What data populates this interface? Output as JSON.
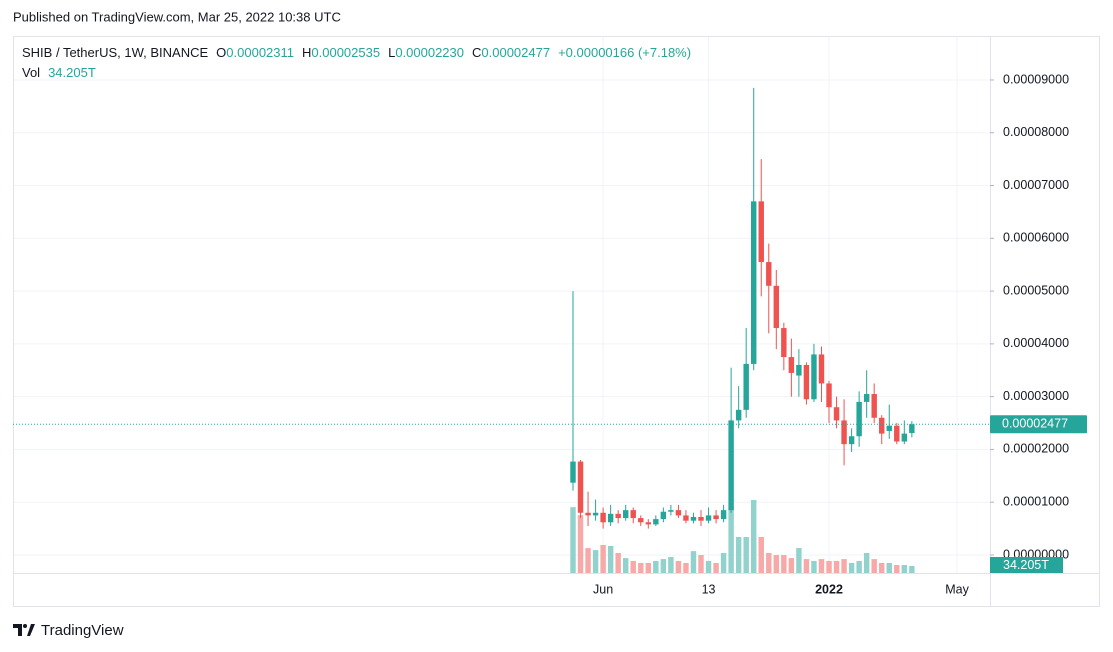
{
  "chart_data": {
    "type": "candlestick",
    "published": "Published on TradingView.com, Mar 25, 2022 10:38 UTC",
    "brand": "TradingView",
    "symbol": "SHIB / TetherUS, 1W, BINANCE",
    "ohlc": [
      {
        "key": "O",
        "text": "0.00002311"
      },
      {
        "key": "H",
        "text": "0.00002535"
      },
      {
        "key": "L",
        "text": "0.00002230"
      },
      {
        "key": "C",
        "text": "0.00002477"
      }
    ],
    "change": "+0.00000166 (+7.18%)",
    "volume_name": "Vol",
    "volume_label": "34.205T",
    "up_color": "#26a69a",
    "down_color": "#ef5350",
    "volume_up_color": "#92d2cc",
    "volume_down_color": "#f7a9a7",
    "grid": true,
    "x": [
      0,
      1,
      2,
      3,
      4,
      5,
      6,
      7,
      8,
      9,
      10,
      11,
      12,
      13,
      14,
      15,
      16,
      17,
      18,
      19,
      20,
      21,
      22,
      23,
      24,
      25,
      26,
      27,
      28,
      29,
      30,
      31,
      32,
      33,
      34,
      35,
      36,
      37,
      38,
      39,
      40,
      41,
      42,
      43,
      44,
      45
    ],
    "open": [
      1.37e-05,
      1.77e-05,
      8e-06,
      7.5e-06,
      8e-06,
      6.2e-06,
      7.8e-06,
      7e-06,
      8.5e-06,
      7e-06,
      6.2e-06,
      5.8e-06,
      6.8e-06,
      8.2e-06,
      8.5e-06,
      7.5e-06,
      6.5e-06,
      7.2e-06,
      6.5e-06,
      7.5e-06,
      6.8e-06,
      8.5e-06,
      2.55e-05,
      2.75e-05,
      3.62e-05,
      6.7e-05,
      5.55e-05,
      5.1e-05,
      4.3e-05,
      3.75e-05,
      3.4e-05,
      3.6e-05,
      2.95e-05,
      3.8e-05,
      3.25e-05,
      2.8e-05,
      2.55e-05,
      2.1e-05,
      2.25e-05,
      2.9e-05,
      3.05e-05,
      2.6e-05,
      2.35e-05,
      2.45e-05,
      2.15e-05,
      2.311e-05
    ],
    "high": [
      5e-05,
      1.8e-05,
      1.2e-05,
      1.05e-05,
      9e-06,
      9.5e-06,
      8.5e-06,
      9.5e-06,
      9e-06,
      7.5e-06,
      6.8e-06,
      7.5e-06,
      9e-06,
      9.5e-06,
      9.5e-06,
      8.5e-06,
      8e-06,
      8.5e-06,
      9e-06,
      8.5e-06,
      9.5e-06,
      3.55e-05,
      3.2e-05,
      4.3e-05,
      8.85e-05,
      7.5e-05,
      5.9e-05,
      5.4e-05,
      4.4e-05,
      4.1e-05,
      3.9e-05,
      3.65e-05,
      4e-05,
      3.95e-05,
      3.3e-05,
      3e-05,
      2.95e-05,
      2.4e-05,
      3.1e-05,
      3.5e-05,
      3.25e-05,
      2.65e-05,
      2.85e-05,
      2.5e-05,
      2.55e-05,
      2.535e-05
    ],
    "low": [
      1.22e-05,
      7e-06,
      5.5e-06,
      6.5e-06,
      5e-06,
      5.5e-06,
      6e-06,
      6.5e-06,
      6e-06,
      5.5e-06,
      5e-06,
      5.5e-06,
      6.2e-06,
      7.5e-06,
      7e-06,
      6e-06,
      6e-06,
      5.5e-06,
      6e-06,
      6e-06,
      6.2e-06,
      8e-06,
      2.4e-05,
      2.6e-05,
      3.5e-05,
      4.9e-05,
      4.2e-05,
      3.9e-05,
      3.5e-05,
      3e-05,
      3e-05,
      2.85e-05,
      2.9e-05,
      2.9e-05,
      2.5e-05,
      2.4e-05,
      1.7e-05,
      1.95e-05,
      2.05e-05,
      2.6e-05,
      2.5e-05,
      2.1e-05,
      2.2e-05,
      2.1e-05,
      2.1e-05,
      2.23e-05
    ],
    "close": [
      1.77e-05,
      8e-06,
      7.5e-06,
      8e-06,
      6.2e-06,
      7.8e-06,
      7e-06,
      8.5e-06,
      7e-06,
      6.2e-06,
      5.8e-06,
      6.8e-06,
      8.2e-06,
      8.5e-06,
      7.5e-06,
      6.5e-06,
      7.2e-06,
      6.5e-06,
      7.5e-06,
      6.8e-06,
      8.5e-06,
      2.55e-05,
      2.75e-05,
      3.62e-05,
      6.7e-05,
      5.55e-05,
      5.1e-05,
      4.3e-05,
      3.75e-05,
      3.45e-05,
      3.6e-05,
      2.95e-05,
      3.8e-05,
      3.25e-05,
      2.8e-05,
      2.55e-05,
      2.1e-05,
      2.25e-05,
      2.9e-05,
      3.05e-05,
      2.6e-05,
      2.3e-05,
      2.45e-05,
      2.15e-05,
      2.3e-05,
      2.477e-05
    ],
    "volume": [
      322,
      283,
      122,
      112,
      137,
      132,
      98,
      73,
      59,
      49,
      49,
      59,
      68,
      78,
      59,
      49,
      107,
      88,
      59,
      49,
      98,
      322,
      176,
      176,
      357,
      176,
      98,
      88,
      88,
      73,
      122,
      68,
      59,
      68,
      59,
      59,
      68,
      49,
      59,
      98,
      68,
      49,
      49,
      39,
      39,
      34.205
    ],
    "xlim": [
      -74.37,
      55.38
    ],
    "xticks": [
      {
        "value": 4,
        "label": "Jun"
      },
      {
        "value": 18,
        "label": "13"
      },
      {
        "value": 34,
        "label": "2022"
      },
      {
        "value": 51,
        "label": "May"
      }
    ],
    "ylim": [
      -3.41e-06,
      9.814e-05
    ],
    "yticks": [
      {
        "value": 0,
        "label": "0.00000000"
      },
      {
        "value": 1e-05,
        "label": "0.00001000"
      },
      {
        "value": 2e-05,
        "label": "0.00002000"
      },
      {
        "value": 3e-05,
        "label": "0.00003000"
      },
      {
        "value": 4e-05,
        "label": "0.00004000"
      },
      {
        "value": 5e-05,
        "label": "0.00005000"
      },
      {
        "value": 6e-05,
        "label": "0.00006000"
      },
      {
        "value": 7e-05,
        "label": "0.00007000"
      },
      {
        "value": 8e-05,
        "label": "0.00008000"
      },
      {
        "value": 9e-05,
        "label": "0.00009000"
      }
    ]
  }
}
